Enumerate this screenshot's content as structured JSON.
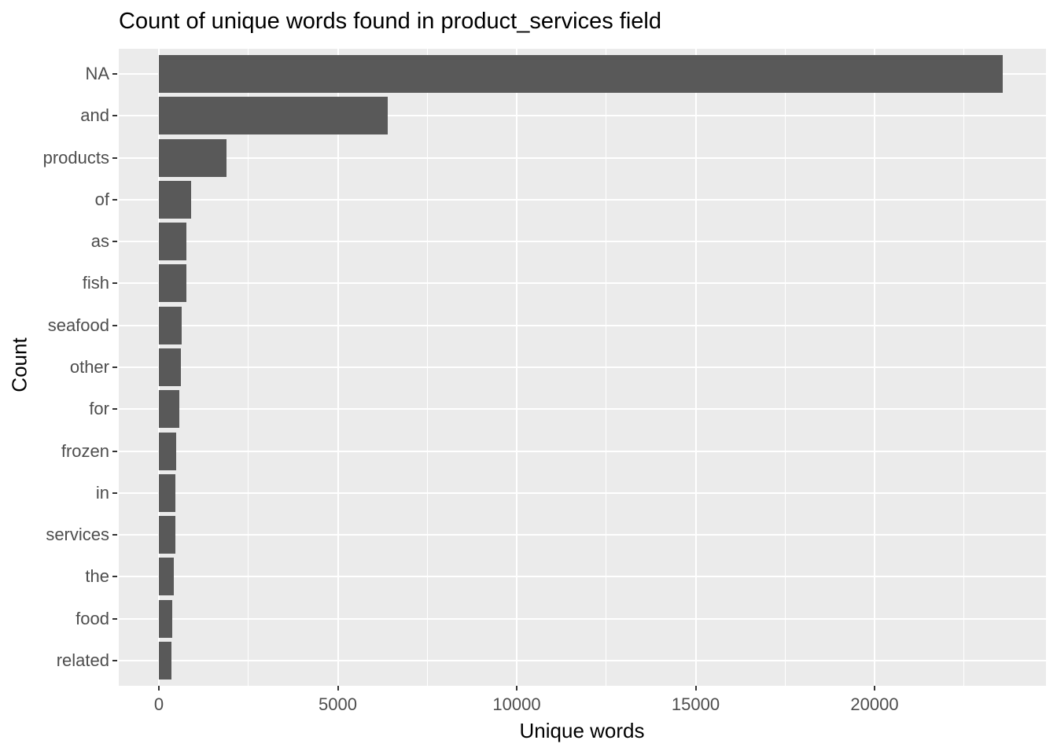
{
  "chart_data": {
    "type": "bar",
    "orientation": "horizontal",
    "title": "Count of unique words found in product_services field",
    "xlabel": "Unique words",
    "ylabel": "Count",
    "categories": [
      "NA",
      "and",
      "products",
      "of",
      "as",
      "fish",
      "seafood",
      "other",
      "for",
      "frozen",
      "in",
      "services",
      "the",
      "food",
      "related"
    ],
    "values": [
      23580,
      6400,
      1890,
      910,
      780,
      775,
      640,
      610,
      580,
      480,
      470,
      455,
      410,
      380,
      350
    ],
    "x_ticks": [
      0,
      5000,
      10000,
      15000,
      20000
    ],
    "x_tick_labels": [
      "0",
      "5000",
      "10000",
      "15000",
      "20000"
    ],
    "x_minor_ticks": [
      2500,
      7500,
      12500,
      17500,
      22500
    ],
    "xlim": [
      -1180,
      24790
    ],
    "grid": true,
    "legend": false,
    "bar_fill": "#595959",
    "panel_background": "#EBEBEB",
    "gridline_color": "#FFFFFF",
    "tick_label_color": "#4D4D4D",
    "title_color": "#000000"
  }
}
